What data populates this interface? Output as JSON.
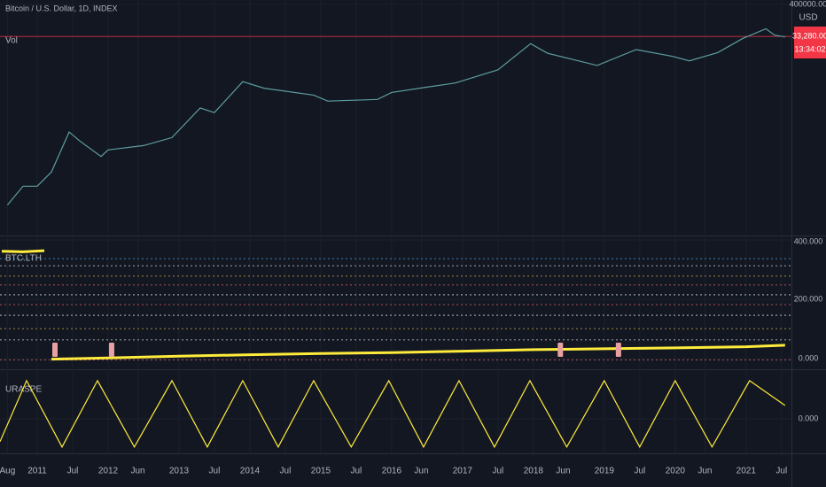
{
  "header": {
    "symbol": "Bitcoin / U.S. Dollar, 1D, INDEX",
    "volume_label": "Vol",
    "currency": "USD",
    "price_label": "33,280.00",
    "countdown": "13:34:02"
  },
  "time_axis": {
    "xlim": [
      2010.475,
      2021.64
    ],
    "xticks": [
      {
        "value": 2010.58,
        "label": "Aug"
      },
      {
        "value": 2011,
        "label": "2011"
      },
      {
        "value": 2011.5,
        "label": "Jul"
      },
      {
        "value": 2012,
        "label": "2012"
      },
      {
        "value": 2012.42,
        "label": "Jun"
      },
      {
        "value": 2013,
        "label": "2013"
      },
      {
        "value": 2013.5,
        "label": "Jul"
      },
      {
        "value": 2014,
        "label": "2014"
      },
      {
        "value": 2014.5,
        "label": "Jul"
      },
      {
        "value": 2015,
        "label": "2015"
      },
      {
        "value": 2015.5,
        "label": "Jul"
      },
      {
        "value": 2016,
        "label": "2016"
      },
      {
        "value": 2016.42,
        "label": "Jun"
      },
      {
        "value": 2017,
        "label": "2017"
      },
      {
        "value": 2017.5,
        "label": "Jul"
      },
      {
        "value": 2018,
        "label": "2018"
      },
      {
        "value": 2018.42,
        "label": "Jun"
      },
      {
        "value": 2019,
        "label": "2019"
      },
      {
        "value": 2019.5,
        "label": "Jul"
      },
      {
        "value": 2020,
        "label": "2020"
      },
      {
        "value": 2020.42,
        "label": "Jun"
      },
      {
        "value": 2021,
        "label": "2021"
      },
      {
        "value": 2021.5,
        "label": "Jul"
      }
    ]
  },
  "chart_data": [
    {
      "type": "line",
      "log_scale": true,
      "ylim": [
        0.007,
        560000
      ],
      "yticks": [
        {
          "value": 400000,
          "label": "400000.00"
        }
      ],
      "last_value": 33280,
      "last_color": "#f23645",
      "series": [
        {
          "color": "#5d9ea0",
          "x": [
            2010.58,
            2010.8,
            2011.0,
            2011.2,
            2011.45,
            2011.6,
            2011.9,
            2012.0,
            2012.5,
            2012.9,
            2013.3,
            2013.5,
            2013.9,
            2014.2,
            2014.9,
            2015.1,
            2015.8,
            2016.0,
            2016.5,
            2016.9,
            2017.5,
            2017.96,
            2018.2,
            2018.9,
            2019.45,
            2019.95,
            2020.2,
            2020.6,
            2020.95,
            2021.28,
            2021.4,
            2021.55
          ],
          "values": [
            0.07,
            0.3,
            0.3,
            0.9,
            20,
            10,
            3,
            5,
            7,
            13,
            130,
            90,
            1000,
            600,
            350,
            220,
            250,
            430,
            650,
            900,
            2500,
            19000,
            9000,
            3500,
            12000,
            7200,
            5000,
            9500,
            28000,
            60000,
            37000,
            32000
          ]
        }
      ]
    },
    {
      "type": "line",
      "title": "BTC.LTH",
      "ylim": [
        -30,
        409
      ],
      "yticks": [
        {
          "value": 400,
          "label": "400.000"
        },
        {
          "value": 200,
          "label": "200.000"
        },
        {
          "value": 0,
          "label": "0.000"
        }
      ],
      "levels": [
        {
          "value": 63,
          "color": "#d4d4d4"
        },
        {
          "value": 101,
          "color": "#c7b34a"
        },
        {
          "value": 146,
          "color": "#d4d4d4"
        },
        {
          "value": 182,
          "color": "#e06666"
        },
        {
          "value": 215,
          "color": "#d4d4d4"
        },
        {
          "value": 248,
          "color": "#e06666"
        },
        {
          "value": 278,
          "color": "#c7b34a"
        },
        {
          "value": 313,
          "color": "#d4d4d4"
        },
        {
          "value": 337,
          "color": "#4fa3e0"
        },
        {
          "value": -5,
          "color": "#e06666"
        }
      ],
      "markers": [
        2011.25,
        2012.05,
        2018.38,
        2019.2
      ],
      "marker_color": "#e8a0a0",
      "series": [
        {
          "color": "#ffeb3b",
          "x": [
            2010.5,
            2010.8,
            2011.1,
            2011.15,
            2011.2,
            2012,
            2013,
            2014,
            2015,
            2016,
            2017,
            2018,
            2019,
            2020,
            2021,
            2021.55
          ],
          "values": [
            362,
            360,
            364,
            null,
            -2,
            2,
            8,
            13,
            17,
            20,
            25,
            30,
            33,
            36,
            40,
            45
          ]
        }
      ]
    },
    {
      "type": "line",
      "title": "URASPE",
      "ylim": [
        -0.86,
        1.23
      ],
      "yticks": [
        {
          "value": 0,
          "label": "0.000"
        }
      ],
      "series": [
        {
          "color": "#ffeb3b",
          "x": [
            2010.475,
            2010.85,
            2011.35,
            2011.85,
            2012.37,
            2012.9,
            2013.4,
            2013.9,
            2014.4,
            2014.9,
            2015.43,
            2015.96,
            2016.45,
            2016.95,
            2017.45,
            2017.95,
            2018.47,
            2019.0,
            2019.5,
            2020.0,
            2020.52,
            2021.05,
            2021.55
          ],
          "values": [
            -0.6,
            1,
            -0.74,
            1,
            -0.74,
            1,
            -0.74,
            1,
            -0.74,
            1,
            -0.74,
            1,
            -0.74,
            1,
            -0.74,
            1,
            -0.74,
            1,
            -0.74,
            1,
            -0.74,
            1,
            0.35
          ]
        }
      ]
    }
  ]
}
